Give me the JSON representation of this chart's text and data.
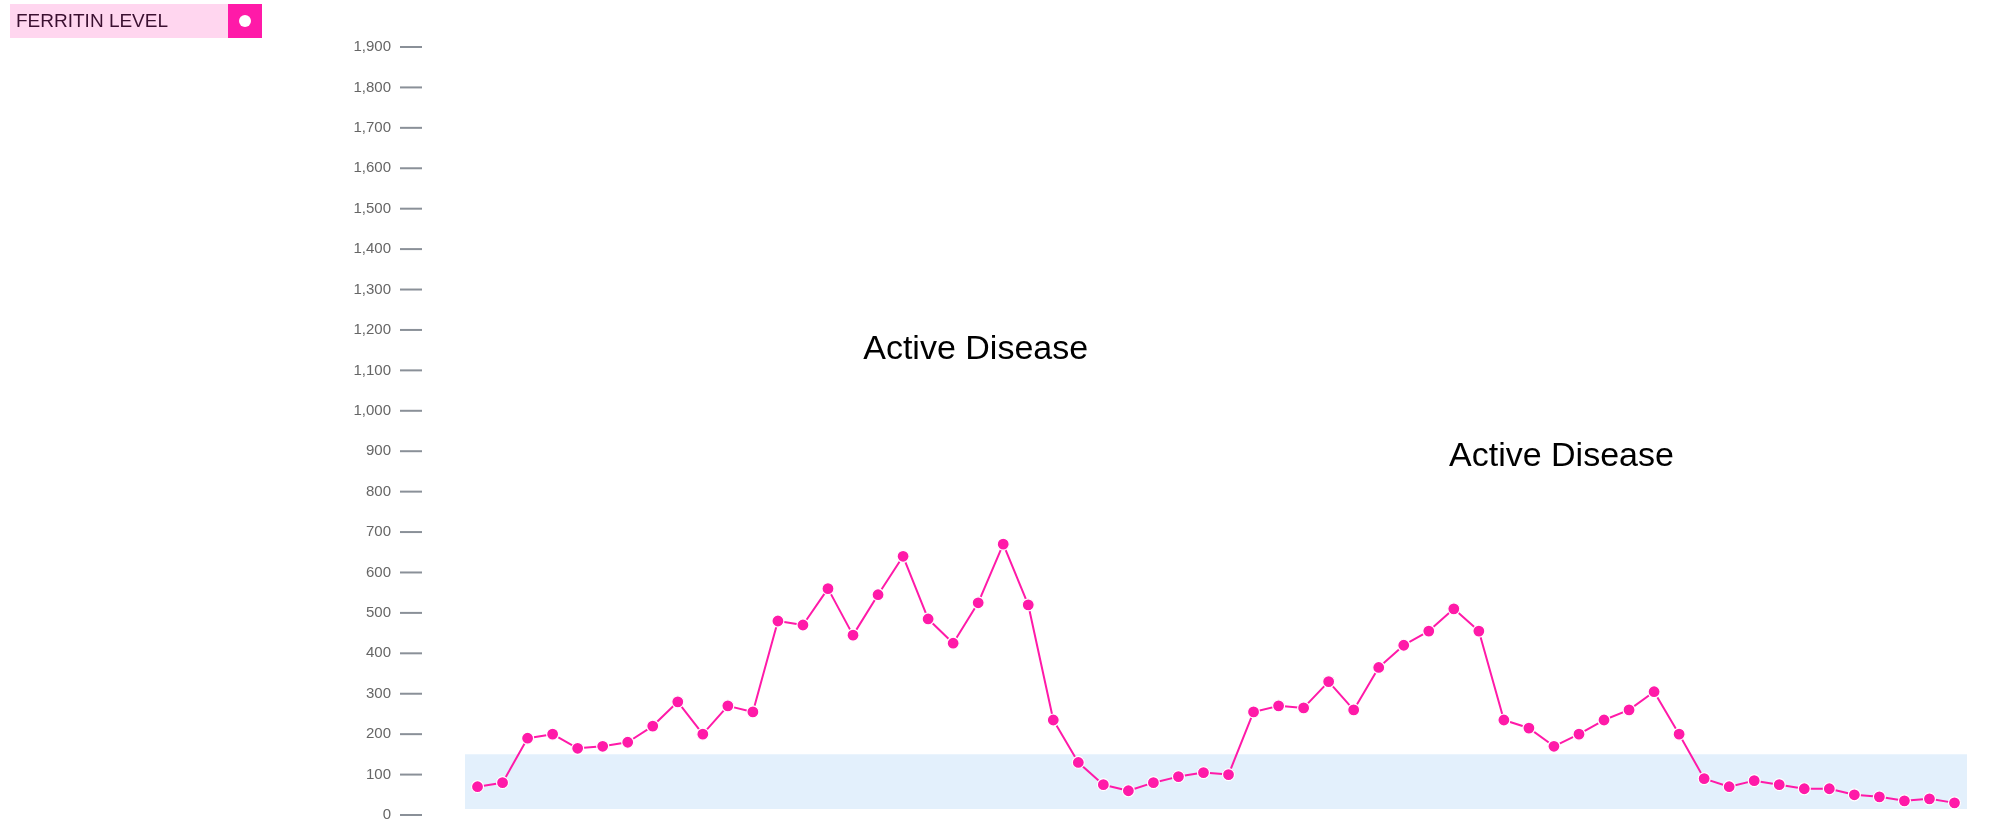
{
  "chart_data": {
    "type": "line",
    "legend": "top left",
    "marker": "circle",
    "tick_labels": "y",
    "categories": [
      null,
      null,
      null,
      null,
      null,
      null,
      null,
      null,
      null,
      null,
      null,
      null,
      null,
      null,
      null,
      null,
      null,
      null,
      null,
      null,
      null,
      null,
      null,
      null,
      null,
      null,
      null,
      null,
      null,
      null,
      null,
      null,
      null,
      null,
      null,
      null,
      null,
      null,
      null,
      null,
      null,
      null,
      null,
      null,
      null,
      null,
      null,
      null,
      null,
      null,
      null,
      null,
      null,
      null,
      null,
      null,
      null,
      null,
      null,
      null
    ],
    "series": [
      {
        "name": "FERRITIN LEVEL",
        "color": "#ff1aa8",
        "values": [
          70,
          80,
          190,
          200,
          165,
          170,
          180,
          220,
          280,
          200,
          270,
          255,
          480,
          470,
          560,
          445,
          545,
          640,
          485,
          425,
          525,
          670,
          520,
          235,
          130,
          75,
          60,
          80,
          95,
          105,
          100,
          255,
          270,
          265,
          330,
          260,
          365,
          420,
          455,
          510,
          455,
          235,
          215,
          170,
          200,
          235,
          260,
          305,
          200,
          90,
          70,
          85,
          75,
          65,
          65,
          50,
          45,
          35,
          40,
          30
        ]
      }
    ],
    "ylim": [
      0,
      1900
    ],
    "yticks": [
      0,
      100,
      200,
      300,
      400,
      500,
      600,
      700,
      800,
      900,
      {
        "value": 1000,
        "label": "1,000"
      },
      {
        "value": 1100,
        "label": "1,100"
      },
      {
        "value": 1200,
        "label": "1,200"
      },
      {
        "value": 1300,
        "label": "1,300"
      },
      {
        "value": 1400,
        "label": "1,400"
      },
      {
        "value": 1500,
        "label": "1,500"
      },
      {
        "value": 1600,
        "label": "1,600"
      },
      {
        "value": 1700,
        "label": "1,700"
      },
      {
        "value": 1800,
        "label": "1,800"
      },
      {
        "value": 1900,
        "label": "1,900"
      }
    ],
    "bands": [
      {
        "axis": "y",
        "from": 15,
        "to": 150,
        "color": "#e3f0fc"
      }
    ],
    "annotations": [
      "Active Disease",
      "Active Disease"
    ]
  }
}
